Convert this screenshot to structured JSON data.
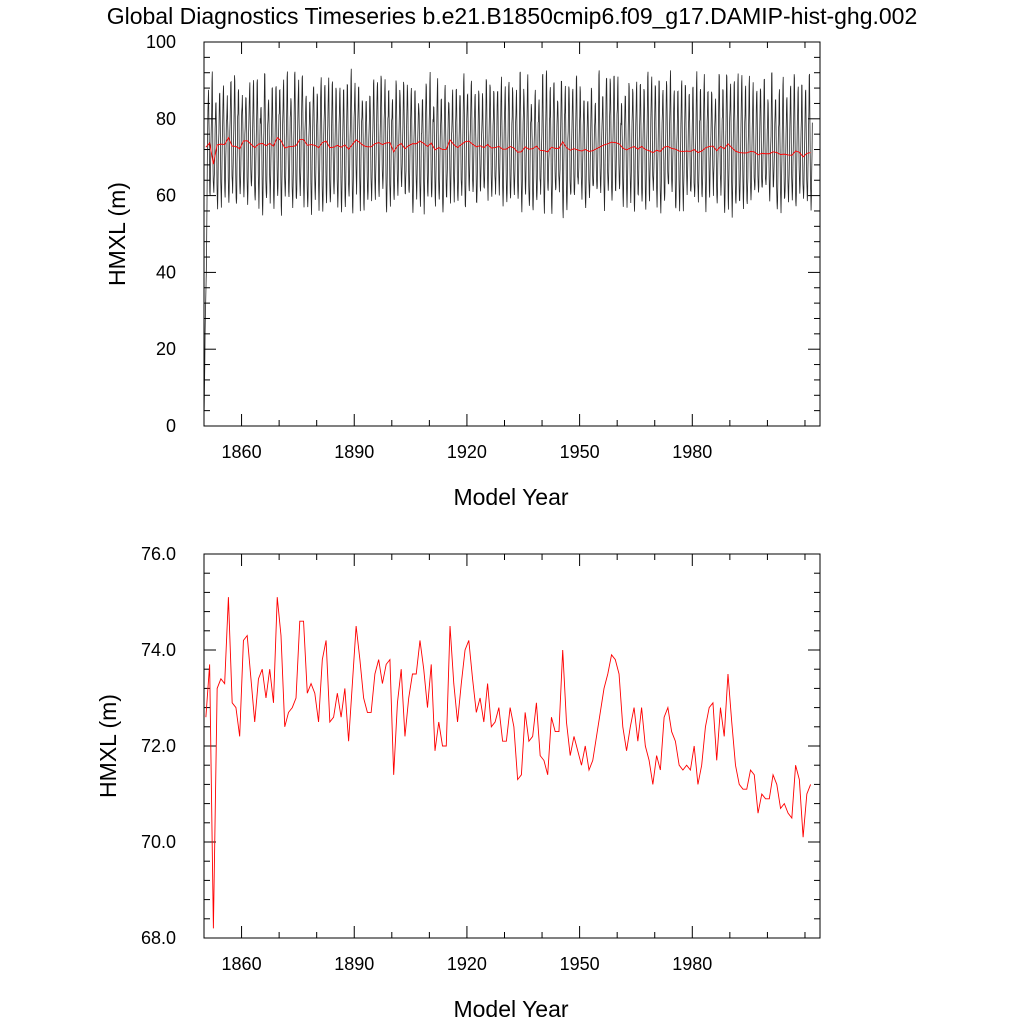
{
  "title": "Global Diagnostics Timeseries b.e21.B1850cmip6.f09_g17.DAMIP-hist-ghg.002",
  "colors": {
    "monthly": "#000000",
    "annual": "#ff0000",
    "frame": "#000000"
  },
  "chart_data": [
    {
      "type": "line",
      "xlabel": "Model Year",
      "ylabel": "HMXL (m)",
      "xlim": [
        1850,
        2014
      ],
      "ylim": [
        0,
        100
      ],
      "xticks": [
        1860,
        1890,
        1920,
        1950,
        1980
      ],
      "xtick_labels": [
        "1860",
        "1890",
        "1920",
        "1950",
        "1980"
      ],
      "yticks": [
        0,
        20,
        40,
        60,
        80,
        100
      ],
      "ytick_labels": [
        "0",
        "20",
        "40",
        "60",
        "80",
        "100"
      ],
      "grid": false,
      "series": [
        {
          "resolution": "monthly",
          "color": "#000000",
          "description": "monthly values with strong seasonal cycle; spin-up from ~4 m at start",
          "start_value": 4.0,
          "seasonal_max_range": [
            84,
            97
          ],
          "seasonal_min_range": [
            55,
            62
          ]
        },
        {
          "resolution": "annual",
          "color": "#ff0000",
          "description": "annual mean (same values as the lower panel)"
        }
      ]
    },
    {
      "type": "line",
      "xlabel": "Model Year",
      "ylabel": "HMXL (m)",
      "xlim": [
        1850,
        2014
      ],
      "ylim": [
        68,
        76
      ],
      "xticks": [
        1860,
        1890,
        1920,
        1950,
        1980
      ],
      "xtick_labels": [
        "1860",
        "1890",
        "1920",
        "1950",
        "1980"
      ],
      "yticks": [
        68,
        70,
        72,
        74,
        76
      ],
      "ytick_labels": [
        "68.0",
        "70.0",
        "72.0",
        "74.0",
        "76.0"
      ],
      "grid": false,
      "series": [
        {
          "resolution": "annual",
          "color": "#ff0000",
          "x_start": 1850,
          "x_step": 1,
          "values": [
            72.6,
            73.7,
            68.2,
            73.2,
            73.4,
            73.3,
            75.1,
            72.9,
            72.8,
            72.2,
            74.2,
            74.3,
            73.4,
            72.5,
            73.4,
            73.6,
            73.0,
            73.6,
            72.9,
            75.1,
            74.3,
            72.4,
            72.7,
            72.8,
            73.0,
            74.6,
            74.6,
            73.1,
            73.3,
            73.1,
            72.5,
            73.8,
            74.2,
            72.5,
            72.6,
            73.1,
            72.6,
            73.2,
            72.1,
            73.3,
            74.5,
            73.8,
            73.0,
            72.7,
            72.7,
            73.5,
            73.8,
            73.3,
            73.7,
            73.8,
            71.4,
            72.9,
            73.6,
            72.2,
            73.0,
            73.5,
            73.5,
            74.2,
            73.6,
            72.8,
            73.7,
            71.9,
            72.5,
            72.0,
            72.0,
            74.5,
            73.3,
            72.5,
            73.3,
            74.0,
            74.2,
            73.4,
            72.7,
            73.0,
            72.5,
            73.3,
            72.4,
            72.5,
            72.8,
            72.1,
            72.1,
            72.8,
            72.4,
            71.3,
            71.4,
            72.7,
            72.1,
            72.2,
            72.9,
            71.8,
            71.7,
            71.4,
            72.6,
            72.3,
            72.3,
            74.0,
            72.5,
            71.8,
            72.2,
            71.9,
            71.6,
            72.0,
            71.5,
            71.7,
            72.2,
            72.7,
            73.2,
            73.5,
            73.9,
            73.8,
            73.5,
            72.4,
            71.9,
            72.4,
            72.8,
            72.1,
            72.8,
            72.0,
            71.7,
            71.2,
            71.8,
            71.5,
            72.6,
            72.8,
            72.3,
            72.1,
            71.6,
            71.5,
            71.6,
            71.5,
            72.0,
            71.2,
            71.6,
            72.4,
            72.8,
            72.9,
            71.7,
            72.8,
            72.2,
            73.5,
            72.5,
            71.6,
            71.2,
            71.1,
            71.1,
            71.5,
            71.4,
            70.6,
            71.0,
            70.9,
            70.9,
            71.4,
            71.2,
            70.7,
            70.8,
            70.6,
            70.5,
            71.6,
            71.3,
            70.1,
            71.0,
            71.2
          ]
        }
      ]
    }
  ]
}
